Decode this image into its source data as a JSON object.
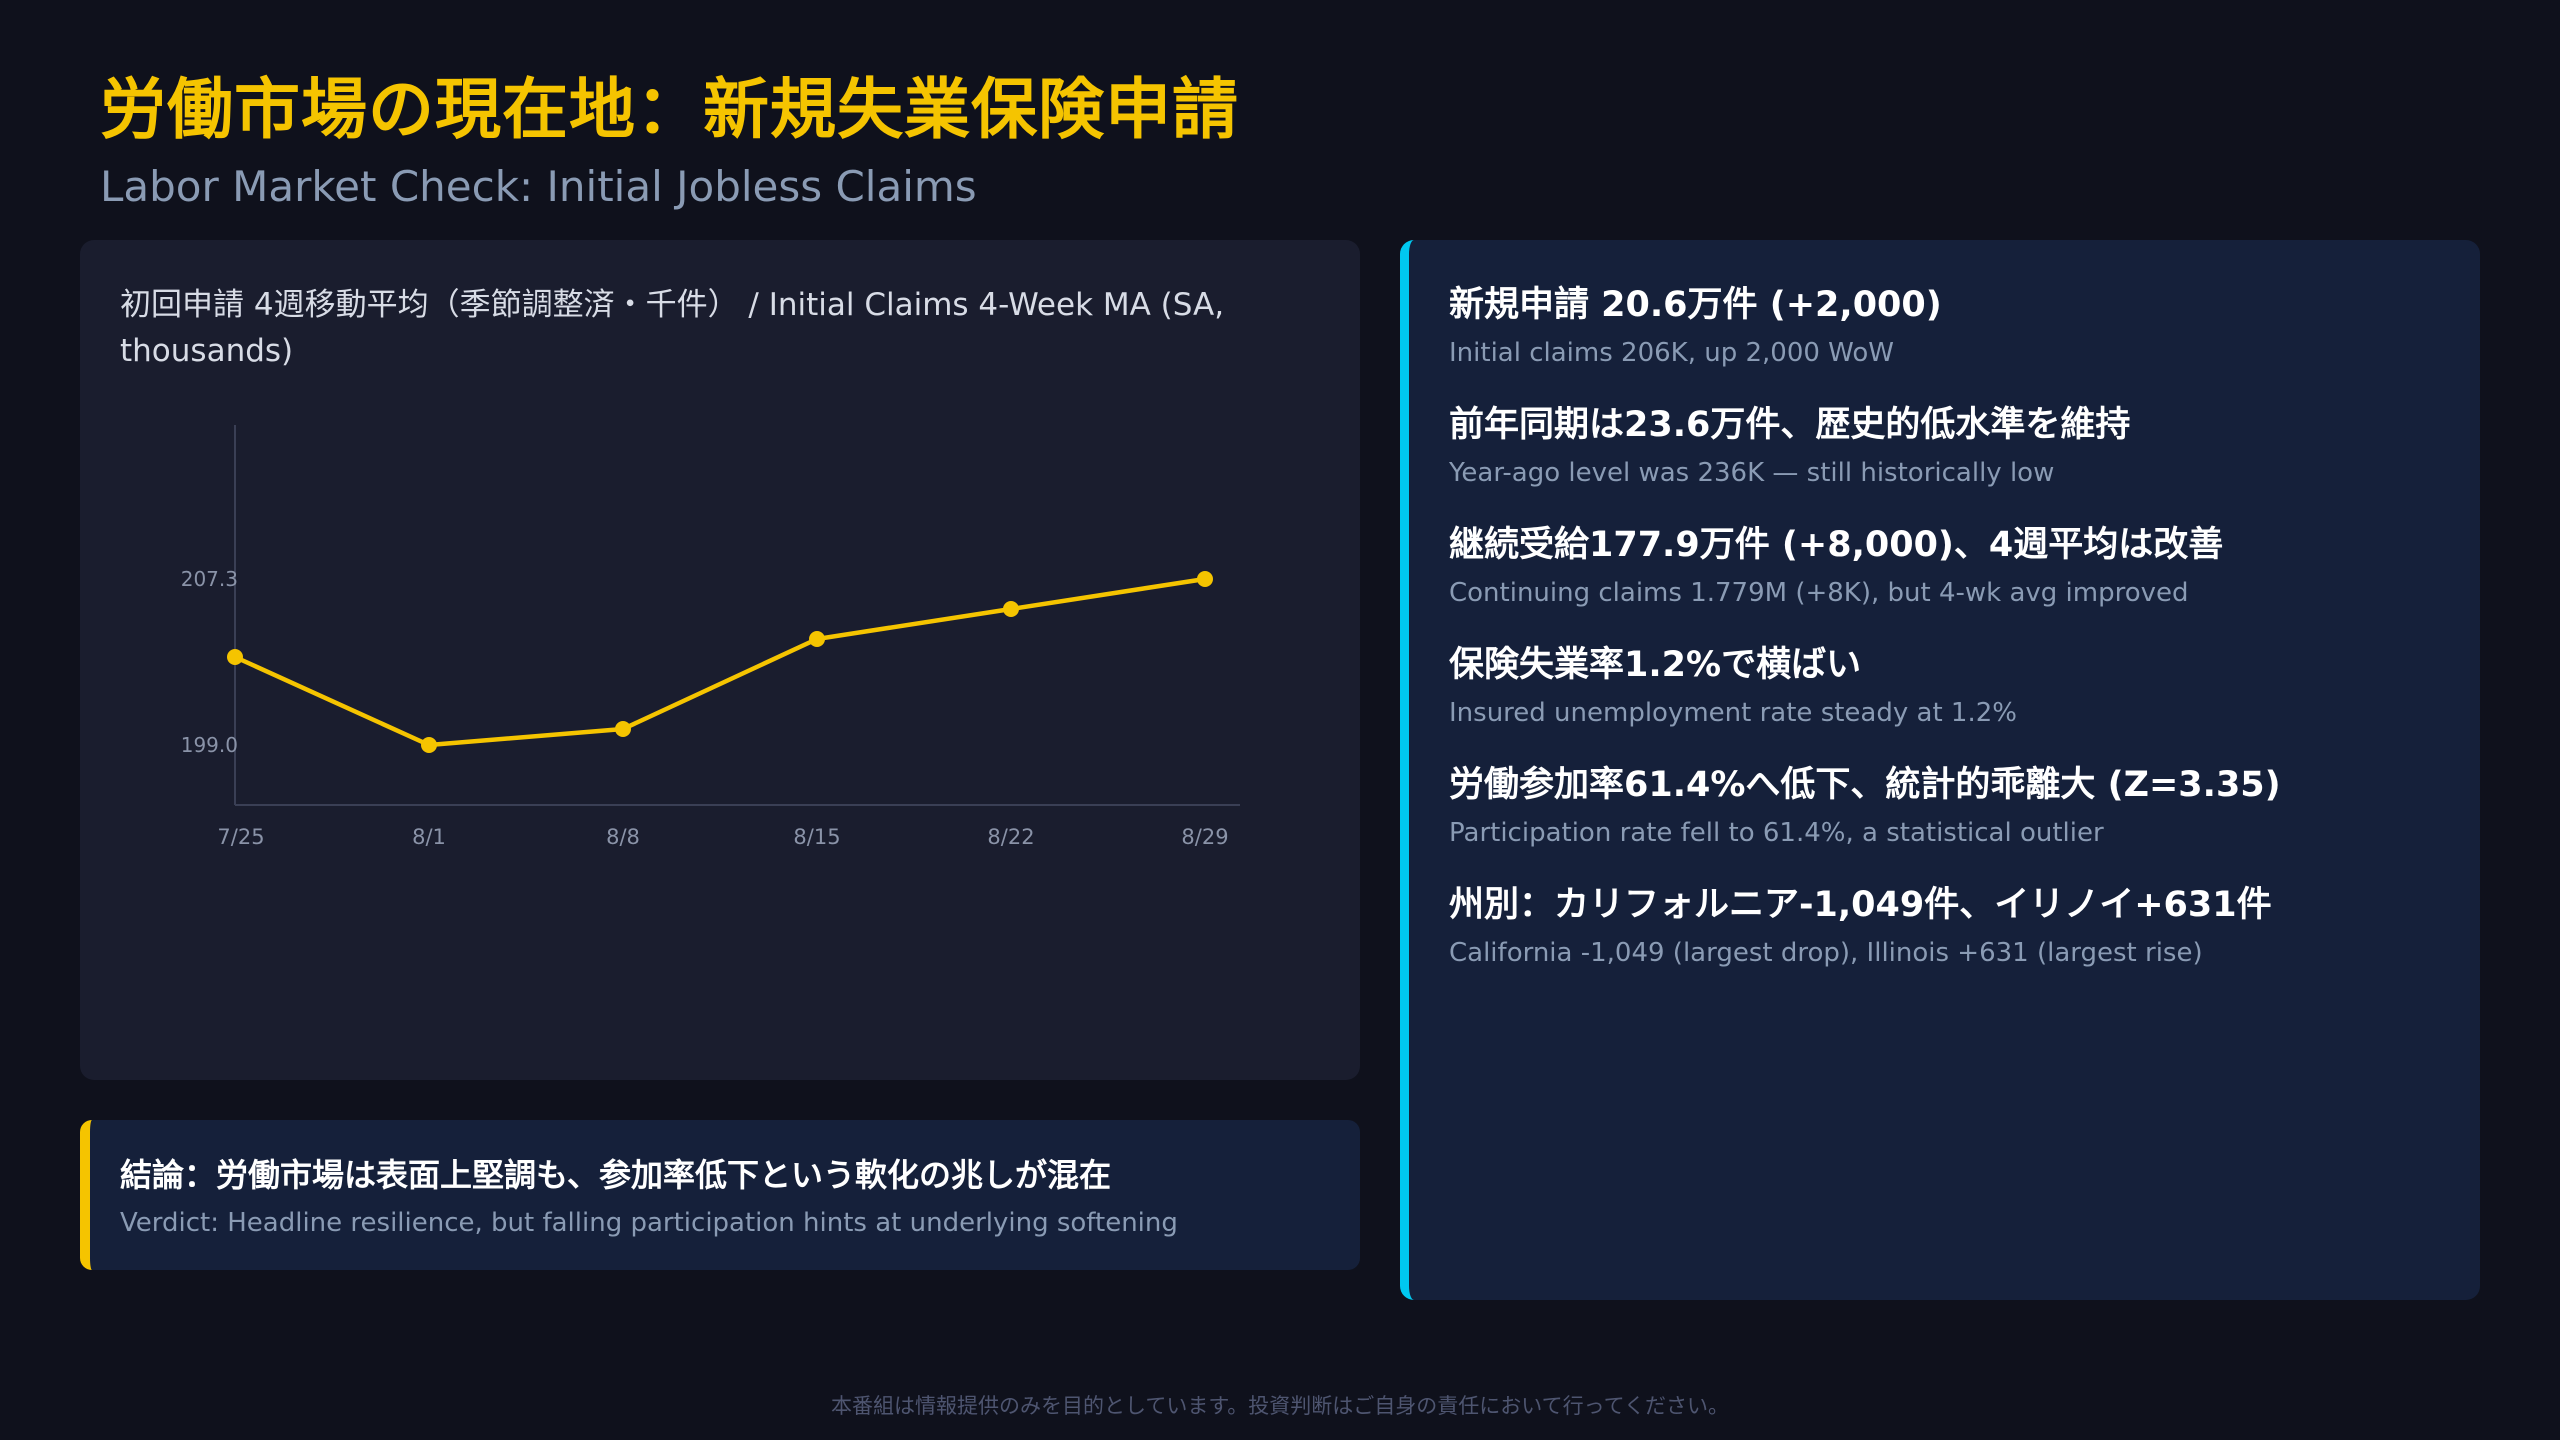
{
  "header": {
    "title": "労働市場の現在地：新規失業保険申請",
    "subtitle": "Labor Market Check: Initial Jobless Claims"
  },
  "chart_data": {
    "type": "line",
    "title": "初回申請 4週移動平均（季節調整済・千件） / Initial Claims 4-Week MA (SA, thousands)",
    "categories": [
      "7/25",
      "8/1",
      "8/8",
      "8/15",
      "8/22",
      "8/29"
    ],
    "series": [
      {
        "values": [
          203.4,
          199.0,
          199.8,
          204.3,
          205.8,
          207.3
        ]
      }
    ],
    "y_ticks": [
      "207.3",
      "199.0"
    ],
    "ylim": [
      196.0,
      215.0
    ],
    "grid": false,
    "color": "#f5c400"
  },
  "points": [
    {
      "main": "新規申請 20.6万件 (+2,000)",
      "sub": "Initial claims 206K, up 2,000 WoW"
    },
    {
      "main": "前年同期は23.6万件、歴史的低水準を維持",
      "sub": "Year-ago level was 236K — still historically low"
    },
    {
      "main": "継続受給177.9万件 (+8,000)、4週平均は改善",
      "sub": "Continuing claims 1.779M (+8K), but 4-wk avg improved"
    },
    {
      "main": "保険失業率1.2%で横ばい",
      "sub": "Insured unemployment rate steady at 1.2%"
    },
    {
      "main": "労働参加率61.4%へ低下、統計的乖離大 (Z=3.35)",
      "sub": "Participation rate fell to 61.4%, a statistical outlier"
    },
    {
      "main": "州別：カリフォルニア-1,049件、イリノイ+631件",
      "sub": "California -1,049 (largest drop), Illinois +631 (largest rise)"
    }
  ],
  "verdict": {
    "main": "結論：労働市場は表面上堅調も、参加率低下という軟化の兆しが混在",
    "sub": "Verdict: Headline resilience, but falling participation hints at underlying softening"
  },
  "footer": "本番組は情報提供のみを目的としています。投資判断はご自身の責任において行ってください。",
  "colors": {
    "accent_yellow": "#f5c400",
    "accent_cyan": "#00c8f0",
    "background": "#0f111c"
  }
}
